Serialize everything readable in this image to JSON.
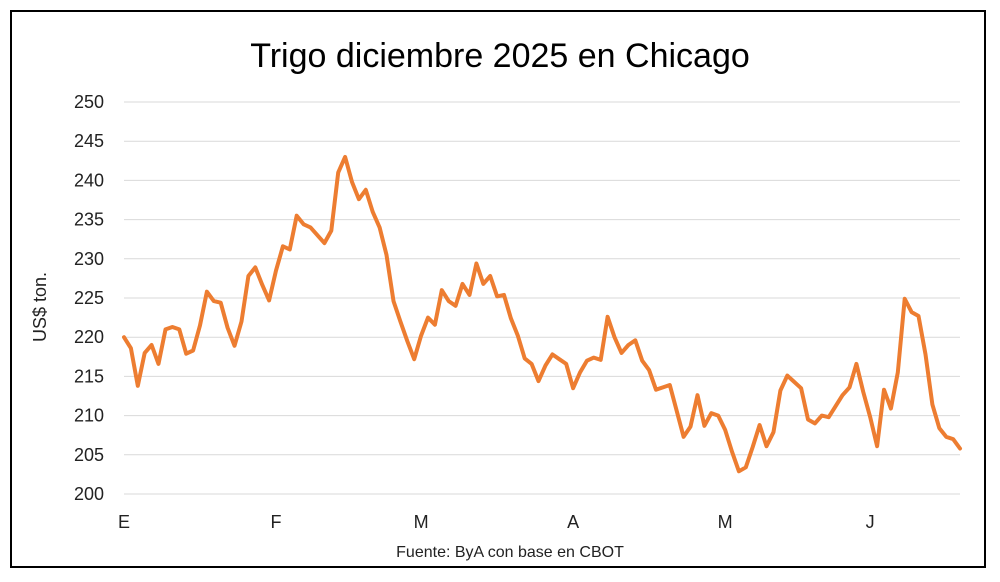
{
  "chart_data": {
    "type": "line",
    "title": "Trigo diciembre 2025 en Chicago",
    "ylabel": "US$ ton.",
    "source": "Fuente: ByA con base en CBOT",
    "ylim": [
      200,
      250
    ],
    "yticks": [
      200,
      205,
      210,
      215,
      220,
      225,
      230,
      235,
      240,
      245,
      250
    ],
    "x_tick_labels": [
      "E",
      "F",
      "M",
      "A",
      "M",
      "J"
    ],
    "x_tick_index": [
      0,
      22,
      43,
      65,
      87,
      108
    ],
    "grid": true,
    "legend": "none",
    "line_color": "#ED7D31",
    "series": [
      {
        "values": [
          220.0,
          218.6,
          213.8,
          218.0,
          219.0,
          216.6,
          221.0,
          221.3,
          221.0,
          217.9,
          218.3,
          221.5,
          225.8,
          224.6,
          224.4,
          221.2,
          218.9,
          222.0,
          227.8,
          228.9,
          226.7,
          224.7,
          228.5,
          231.6,
          231.2,
          235.5,
          234.4,
          234.0,
          233.0,
          232.0,
          233.6,
          241.0,
          243.0,
          239.8,
          237.6,
          238.8,
          236.0,
          234.0,
          230.5,
          224.6,
          222.0,
          219.5,
          217.2,
          220.2,
          222.5,
          221.6,
          226.0,
          224.6,
          224.0,
          226.8,
          225.4,
          229.4,
          226.8,
          227.8,
          225.2,
          225.4,
          222.4,
          220.2,
          217.3,
          216.6,
          214.4,
          216.4,
          217.8,
          217.2,
          216.6,
          213.5,
          215.5,
          217.0,
          217.4,
          217.1,
          222.6,
          220.0,
          218.0,
          219.0,
          219.6,
          217.0,
          215.8,
          213.3,
          213.6,
          213.9,
          210.6,
          207.3,
          208.6,
          212.6,
          208.7,
          210.3,
          210.0,
          208.2,
          205.4,
          202.9,
          203.4,
          206.0,
          208.8,
          206.1,
          207.9,
          213.2,
          215.1,
          214.3,
          213.5,
          209.5,
          209.0,
          210.0,
          209.8,
          211.2,
          212.6,
          213.6,
          216.6,
          213.0,
          209.8,
          206.1,
          213.3,
          210.9,
          215.5,
          224.9,
          223.2,
          222.7,
          217.8,
          211.4,
          208.4,
          207.3,
          207.0,
          205.8
        ]
      }
    ]
  }
}
